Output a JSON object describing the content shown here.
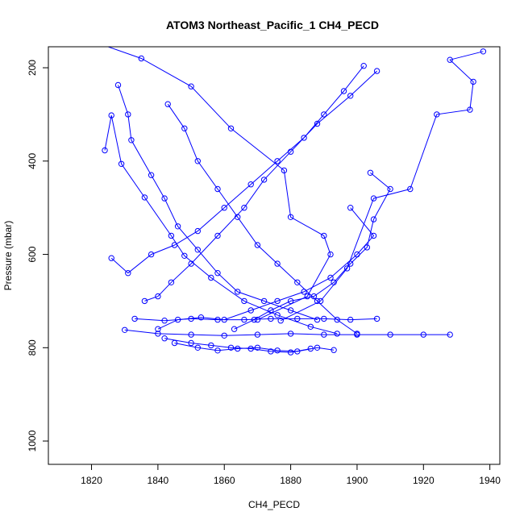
{
  "chart_data": {
    "type": "line",
    "title": "ATOM3 Northeast_Pacific_1 CH4_PECD",
    "xlabel": "CH4_PECD",
    "ylabel": "Pressure (mbar)",
    "xlim": [
      1807,
      1943
    ],
    "ylim": [
      1050,
      155
    ],
    "y_inverted": true,
    "grid": false,
    "x_ticks": [
      1820,
      1840,
      1860,
      1880,
      1900,
      1920,
      1940
    ],
    "y_ticks": [
      200,
      400,
      600,
      800,
      1000
    ],
    "series_color": "#0000ff",
    "marker": "open-circle",
    "series": [
      {
        "x": [
          1819,
          1835,
          1850,
          1862,
          1878,
          1880,
          1890,
          1892,
          1885,
          1870
        ],
        "y": [
          140,
          180,
          240,
          330,
          420,
          520,
          560,
          600,
          690,
          740
        ]
      },
      {
        "x": [
          1828,
          1831,
          1832,
          1838,
          1842,
          1846,
          1852,
          1858,
          1864,
          1872,
          1880,
          1888
        ],
        "y": [
          237,
          300,
          355,
          430,
          480,
          540,
          590,
          640,
          680,
          700,
          720,
          740
        ]
      },
      {
        "x": [
          1824,
          1826,
          1829,
          1836,
          1844,
          1848,
          1856,
          1866,
          1876,
          1886,
          1894
        ],
        "y": [
          377,
          302,
          406,
          478,
          560,
          603,
          650,
          700,
          730,
          755,
          770
        ]
      },
      {
        "x": [
          1843,
          1848,
          1852,
          1858,
          1864,
          1870,
          1876,
          1882,
          1888,
          1894,
          1900
        ],
        "y": [
          278,
          330,
          400,
          460,
          520,
          580,
          620,
          660,
          700,
          740,
          770
        ]
      },
      {
        "x": [
          1877,
          1889,
          1897,
          1905,
          1916,
          1924,
          1934,
          1935,
          1928,
          1938
        ],
        "y": [
          742,
          700,
          630,
          480,
          460,
          300,
          290,
          230,
          183,
          165
        ]
      },
      {
        "x": [
          1902,
          1896,
          1890,
          1884,
          1876,
          1868,
          1860,
          1852,
          1845,
          1838,
          1831,
          1826
        ],
        "y": [
          196,
          250,
          300,
          350,
          400,
          450,
          500,
          550,
          580,
          600,
          640,
          608
        ]
      },
      {
        "x": [
          1906,
          1898,
          1888,
          1880,
          1872,
          1866,
          1858,
          1850,
          1844,
          1840,
          1836
        ],
        "y": [
          207,
          260,
          320,
          380,
          440,
          500,
          560,
          620,
          660,
          690,
          700
        ]
      },
      {
        "x": [
          1904,
          1910,
          1905,
          1903,
          1898,
          1893,
          1887,
          1880,
          1874,
          1869,
          1863
        ],
        "y": [
          425,
          460,
          525,
          585,
          620,
          660,
          690,
          700,
          720,
          740,
          760
        ]
      },
      {
        "x": [
          1840,
          1846,
          1853,
          1860,
          1868,
          1876,
          1884,
          1892,
          1900,
          1905,
          1898
        ],
        "y": [
          760,
          740,
          735,
          740,
          720,
          700,
          680,
          650,
          600,
          560,
          500
        ]
      },
      {
        "x": [
          1830,
          1840,
          1850,
          1860,
          1870,
          1880,
          1890,
          1900,
          1910,
          1920,
          1928
        ],
        "y": [
          762,
          770,
          772,
          774,
          772,
          770,
          772,
          772,
          772,
          772,
          772
        ]
      },
      {
        "x": [
          1833,
          1842,
          1850,
          1858,
          1866,
          1874,
          1882,
          1890,
          1898,
          1906
        ],
        "y": [
          738,
          742,
          738,
          740,
          740,
          738,
          738,
          738,
          740,
          738
        ]
      },
      {
        "x": [
          1845,
          1852,
          1858,
          1864,
          1870,
          1876,
          1882,
          1888,
          1893
        ],
        "y": [
          790,
          800,
          806,
          802,
          800,
          806,
          808,
          800,
          805
        ]
      },
      {
        "x": [
          1842,
          1850,
          1856,
          1862,
          1868,
          1874,
          1880,
          1886
        ],
        "y": [
          780,
          790,
          795,
          800,
          802,
          808,
          810,
          802
        ]
      }
    ]
  }
}
